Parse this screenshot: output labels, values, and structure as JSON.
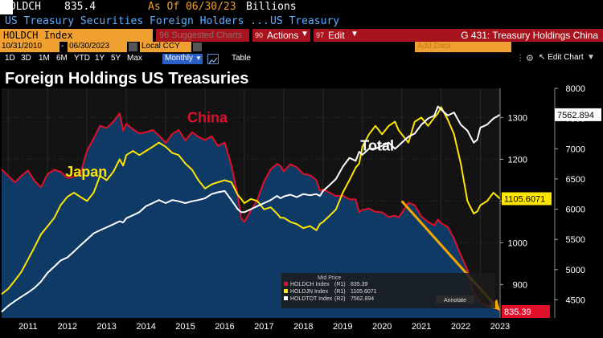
{
  "header": {
    "ticker": "HOLDCH",
    "price": "835.4",
    "asof": "As Of 06/30/23",
    "units": "Billions",
    "description": "US Treasury Securities Foreign Holders ...",
    "source": "US Treasury",
    "index_name": "HOLDCH Index",
    "suggested_charts": "96 Suggested Charts",
    "actions_num": "90",
    "actions_label": "Actions",
    "edit_num": "97",
    "edit_label": "Edit",
    "title_right": "G 431: Treasury Holdings China",
    "start_date": "10/31/2010",
    "end_date": "06/30/2023",
    "currency": "Local CCY",
    "add_data_placeholder": "Add Data",
    "edit_chart_label": "Edit Chart"
  },
  "toolbar": {
    "periods": [
      "1D",
      "3D",
      "1M",
      "6M",
      "YTD",
      "1Y",
      "5Y",
      "Max"
    ],
    "frequency": "Monthly",
    "table_label": "Table"
  },
  "colors": {
    "china": "#e0102a",
    "japan": "#ffe600",
    "total": "#ffffff",
    "area": "#0f3a66",
    "arrow": "#f5a800",
    "title_bar": "#f0a030"
  },
  "chart_data": {
    "type": "line",
    "title": "Foreign Holdings US Treasuries",
    "annotations": [
      "China",
      "Japan",
      "Total"
    ],
    "x_ticks": [
      "2011",
      "2012",
      "2013",
      "2014",
      "2015",
      "2016",
      "2017",
      "2018",
      "2019",
      "2020",
      "2021",
      "2022",
      "2023"
    ],
    "x_range": [
      2010.83,
      2023.5
    ],
    "y_left": {
      "range": [
        820,
        1370
      ],
      "ticks": [
        900,
        1000,
        1100,
        1200,
        1300
      ]
    },
    "y_right": {
      "range": [
        4200,
        8000
      ],
      "ticks": [
        4500,
        5000,
        5500,
        6000,
        6500,
        7000,
        7500,
        8000
      ]
    },
    "series": [
      {
        "name": "China",
        "ticker": "HOLDCH Index",
        "axis": "R1",
        "last": "835.39",
        "points": [
          [
            2010.83,
            1176
          ],
          [
            2011.0,
            1160
          ],
          [
            2011.17,
            1145
          ],
          [
            2011.33,
            1160
          ],
          [
            2011.5,
            1173
          ],
          [
            2011.67,
            1148
          ],
          [
            2011.83,
            1133
          ],
          [
            2011.92,
            1150
          ],
          [
            2012.0,
            1165
          ],
          [
            2012.17,
            1175
          ],
          [
            2012.33,
            1170
          ],
          [
            2012.5,
            1155
          ],
          [
            2012.67,
            1158
          ],
          [
            2012.83,
            1165
          ],
          [
            2013.0,
            1220
          ],
          [
            2013.17,
            1250
          ],
          [
            2013.33,
            1280
          ],
          [
            2013.5,
            1275
          ],
          [
            2013.67,
            1290
          ],
          [
            2013.83,
            1310
          ],
          [
            2013.92,
            1268
          ],
          [
            2014.0,
            1285
          ],
          [
            2014.17,
            1272
          ],
          [
            2014.33,
            1262
          ],
          [
            2014.5,
            1265
          ],
          [
            2014.67,
            1270
          ],
          [
            2014.83,
            1257
          ],
          [
            2015.0,
            1239
          ],
          [
            2015.17,
            1261
          ],
          [
            2015.33,
            1270
          ],
          [
            2015.5,
            1245
          ],
          [
            2015.67,
            1265
          ],
          [
            2015.83,
            1254
          ],
          [
            2016.0,
            1246
          ],
          [
            2016.17,
            1255
          ],
          [
            2016.33,
            1232
          ],
          [
            2016.5,
            1240
          ],
          [
            2016.67,
            1185
          ],
          [
            2016.83,
            1115
          ],
          [
            2016.92,
            1058
          ],
          [
            2017.0,
            1050
          ],
          [
            2017.17,
            1078
          ],
          [
            2017.33,
            1103
          ],
          [
            2017.5,
            1147
          ],
          [
            2017.67,
            1176
          ],
          [
            2017.83,
            1189
          ],
          [
            2017.92,
            1184
          ],
          [
            2018.0,
            1171
          ],
          [
            2018.17,
            1188
          ],
          [
            2018.33,
            1181
          ],
          [
            2018.5,
            1165
          ],
          [
            2018.67,
            1162
          ],
          [
            2018.83,
            1150
          ],
          [
            2018.92,
            1124
          ],
          [
            2019.0,
            1128
          ],
          [
            2019.17,
            1120
          ],
          [
            2019.33,
            1112
          ],
          [
            2019.5,
            1113
          ],
          [
            2019.67,
            1104
          ],
          [
            2019.83,
            1104
          ],
          [
            2019.92,
            1073
          ],
          [
            2020.0,
            1079
          ],
          [
            2020.17,
            1082
          ],
          [
            2020.33,
            1074
          ],
          [
            2020.5,
            1073
          ],
          [
            2020.67,
            1062
          ],
          [
            2020.83,
            1065
          ],
          [
            2020.92,
            1061
          ],
          [
            2021.0,
            1071
          ],
          [
            2021.17,
            1096
          ],
          [
            2021.33,
            1090
          ],
          [
            2021.5,
            1063
          ],
          [
            2021.67,
            1050
          ],
          [
            2021.83,
            1042
          ],
          [
            2021.92,
            1056
          ],
          [
            2022.0,
            1047
          ],
          [
            2022.17,
            1038
          ],
          [
            2022.33,
            1010
          ],
          [
            2022.5,
            970
          ],
          [
            2022.67,
            935
          ],
          [
            2022.83,
            880
          ],
          [
            2022.92,
            867
          ],
          [
            2023.0,
            858
          ],
          [
            2023.17,
            848
          ],
          [
            2023.33,
            860
          ],
          [
            2023.5,
            835
          ]
        ]
      },
      {
        "name": "Japan",
        "ticker": "HOLDJN Index",
        "axis": "R1",
        "last": "1105.6071",
        "points": [
          [
            2010.83,
            877
          ],
          [
            2011.0,
            890
          ],
          [
            2011.17,
            910
          ],
          [
            2011.33,
            930
          ],
          [
            2011.5,
            960
          ],
          [
            2011.67,
            990
          ],
          [
            2011.83,
            1020
          ],
          [
            2012.0,
            1040
          ],
          [
            2012.17,
            1060
          ],
          [
            2012.33,
            1090
          ],
          [
            2012.5,
            1110
          ],
          [
            2012.67,
            1120
          ],
          [
            2012.83,
            1110
          ],
          [
            2013.0,
            1100
          ],
          [
            2013.17,
            1120
          ],
          [
            2013.33,
            1160
          ],
          [
            2013.5,
            1150
          ],
          [
            2013.67,
            1170
          ],
          [
            2013.83,
            1200
          ],
          [
            2013.92,
            1185
          ],
          [
            2014.0,
            1210
          ],
          [
            2014.17,
            1220
          ],
          [
            2014.33,
            1210
          ],
          [
            2014.5,
            1220
          ],
          [
            2014.67,
            1230
          ],
          [
            2014.83,
            1240
          ],
          [
            2015.0,
            1230
          ],
          [
            2015.17,
            1215
          ],
          [
            2015.33,
            1210
          ],
          [
            2015.5,
            1190
          ],
          [
            2015.67,
            1175
          ],
          [
            2015.83,
            1150
          ],
          [
            2016.0,
            1130
          ],
          [
            2016.17,
            1140
          ],
          [
            2016.33,
            1145
          ],
          [
            2016.5,
            1150
          ],
          [
            2016.67,
            1145
          ],
          [
            2016.83,
            1115
          ],
          [
            2016.92,
            1105
          ],
          [
            2017.0,
            1095
          ],
          [
            2017.17,
            1105
          ],
          [
            2017.33,
            1100
          ],
          [
            2017.5,
            1080
          ],
          [
            2017.67,
            1085
          ],
          [
            2017.83,
            1070
          ],
          [
            2017.92,
            1060
          ],
          [
            2018.0,
            1060
          ],
          [
            2018.17,
            1050
          ],
          [
            2018.33,
            1045
          ],
          [
            2018.5,
            1035
          ],
          [
            2018.67,
            1040
          ],
          [
            2018.83,
            1030
          ],
          [
            2018.92,
            1045
          ],
          [
            2019.0,
            1050
          ],
          [
            2019.17,
            1065
          ],
          [
            2019.33,
            1080
          ],
          [
            2019.5,
            1120
          ],
          [
            2019.67,
            1150
          ],
          [
            2019.83,
            1180
          ],
          [
            2019.92,
            1190
          ],
          [
            2020.0,
            1230
          ],
          [
            2020.17,
            1260
          ],
          [
            2020.33,
            1280
          ],
          [
            2020.5,
            1260
          ],
          [
            2020.67,
            1280
          ],
          [
            2020.83,
            1290
          ],
          [
            2020.92,
            1270
          ],
          [
            2021.0,
            1260
          ],
          [
            2021.17,
            1240
          ],
          [
            2021.33,
            1290
          ],
          [
            2021.5,
            1300
          ],
          [
            2021.67,
            1280
          ],
          [
            2021.83,
            1300
          ],
          [
            2021.92,
            1310
          ],
          [
            2022.0,
            1325
          ],
          [
            2022.17,
            1295
          ],
          [
            2022.33,
            1260
          ],
          [
            2022.5,
            1190
          ],
          [
            2022.67,
            1100
          ],
          [
            2022.83,
            1070
          ],
          [
            2022.92,
            1075
          ],
          [
            2023.0,
            1090
          ],
          [
            2023.17,
            1100
          ],
          [
            2023.33,
            1120
          ],
          [
            2023.5,
            1105.6
          ]
        ]
      },
      {
        "name": "Total",
        "ticker": "HOLDTOT Index",
        "axis": "R2",
        "last": "7562.894",
        "points": [
          [
            2010.83,
            4300
          ],
          [
            2011.0,
            4400
          ],
          [
            2011.17,
            4480
          ],
          [
            2011.33,
            4550
          ],
          [
            2011.5,
            4620
          ],
          [
            2011.67,
            4700
          ],
          [
            2011.83,
            4800
          ],
          [
            2012.0,
            4950
          ],
          [
            2012.17,
            5050
          ],
          [
            2012.33,
            5150
          ],
          [
            2012.5,
            5200
          ],
          [
            2012.67,
            5300
          ],
          [
            2012.83,
            5400
          ],
          [
            2013.0,
            5500
          ],
          [
            2013.17,
            5600
          ],
          [
            2013.33,
            5650
          ],
          [
            2013.5,
            5700
          ],
          [
            2013.67,
            5750
          ],
          [
            2013.83,
            5800
          ],
          [
            2013.92,
            5780
          ],
          [
            2014.0,
            5850
          ],
          [
            2014.17,
            5900
          ],
          [
            2014.33,
            5950
          ],
          [
            2014.5,
            6050
          ],
          [
            2014.67,
            6100
          ],
          [
            2014.83,
            6150
          ],
          [
            2015.0,
            6100
          ],
          [
            2015.17,
            6150
          ],
          [
            2015.33,
            6130
          ],
          [
            2015.5,
            6100
          ],
          [
            2015.67,
            6130
          ],
          [
            2015.83,
            6150
          ],
          [
            2016.0,
            6180
          ],
          [
            2016.17,
            6250
          ],
          [
            2016.33,
            6280
          ],
          [
            2016.5,
            6300
          ],
          [
            2016.67,
            6150
          ],
          [
            2016.83,
            6000
          ],
          [
            2016.92,
            5950
          ],
          [
            2017.0,
            5950
          ],
          [
            2017.17,
            6000
          ],
          [
            2017.33,
            6050
          ],
          [
            2017.5,
            6100
          ],
          [
            2017.67,
            6150
          ],
          [
            2017.83,
            6220
          ],
          [
            2017.92,
            6180
          ],
          [
            2018.0,
            6210
          ],
          [
            2018.17,
            6240
          ],
          [
            2018.33,
            6200
          ],
          [
            2018.5,
            6250
          ],
          [
            2018.67,
            6230
          ],
          [
            2018.83,
            6250
          ],
          [
            2018.92,
            6220
          ],
          [
            2019.0,
            6300
          ],
          [
            2019.17,
            6400
          ],
          [
            2019.33,
            6500
          ],
          [
            2019.5,
            6700
          ],
          [
            2019.67,
            6850
          ],
          [
            2019.83,
            6800
          ],
          [
            2019.92,
            6950
          ],
          [
            2020.0,
            6900
          ],
          [
            2020.17,
            7000
          ],
          [
            2020.33,
            7000
          ],
          [
            2020.5,
            7050
          ],
          [
            2020.67,
            7100
          ],
          [
            2020.83,
            7000
          ],
          [
            2020.92,
            7050
          ],
          [
            2021.0,
            7100
          ],
          [
            2021.17,
            7200
          ],
          [
            2021.33,
            7250
          ],
          [
            2021.5,
            7400
          ],
          [
            2021.67,
            7500
          ],
          [
            2021.83,
            7550
          ],
          [
            2021.92,
            7700
          ],
          [
            2022.0,
            7650
          ],
          [
            2022.17,
            7550
          ],
          [
            2022.33,
            7600
          ],
          [
            2022.5,
            7400
          ],
          [
            2022.67,
            7300
          ],
          [
            2022.83,
            7100
          ],
          [
            2022.92,
            7150
          ],
          [
            2023.0,
            7350
          ],
          [
            2023.17,
            7400
          ],
          [
            2023.33,
            7500
          ],
          [
            2023.5,
            7562.9
          ]
        ]
      }
    ],
    "axis_labels": {
      "china_last": "835.39",
      "japan_last": "1105.6071",
      "total_last": "7562.894"
    },
    "legend": {
      "title": "Mid Price",
      "position": "bottom-right",
      "items": [
        {
          "label": "HOLDCH Index",
          "axis": "(R1)",
          "value": "835.39",
          "color": "#e0102a"
        },
        {
          "label": "HOLDJN Index",
          "axis": "(R1)",
          "value": "1105.6071",
          "color": "#ffe600"
        },
        {
          "label": "HOLDTOT Index",
          "axis": "(R2)",
          "value": "7562.894",
          "color": "#ffffff"
        }
      ],
      "annotate_label": "Annotate"
    },
    "trend_arrow": {
      "from": [
        2021.0,
        1100
      ],
      "to": [
        2023.5,
        838
      ]
    }
  }
}
